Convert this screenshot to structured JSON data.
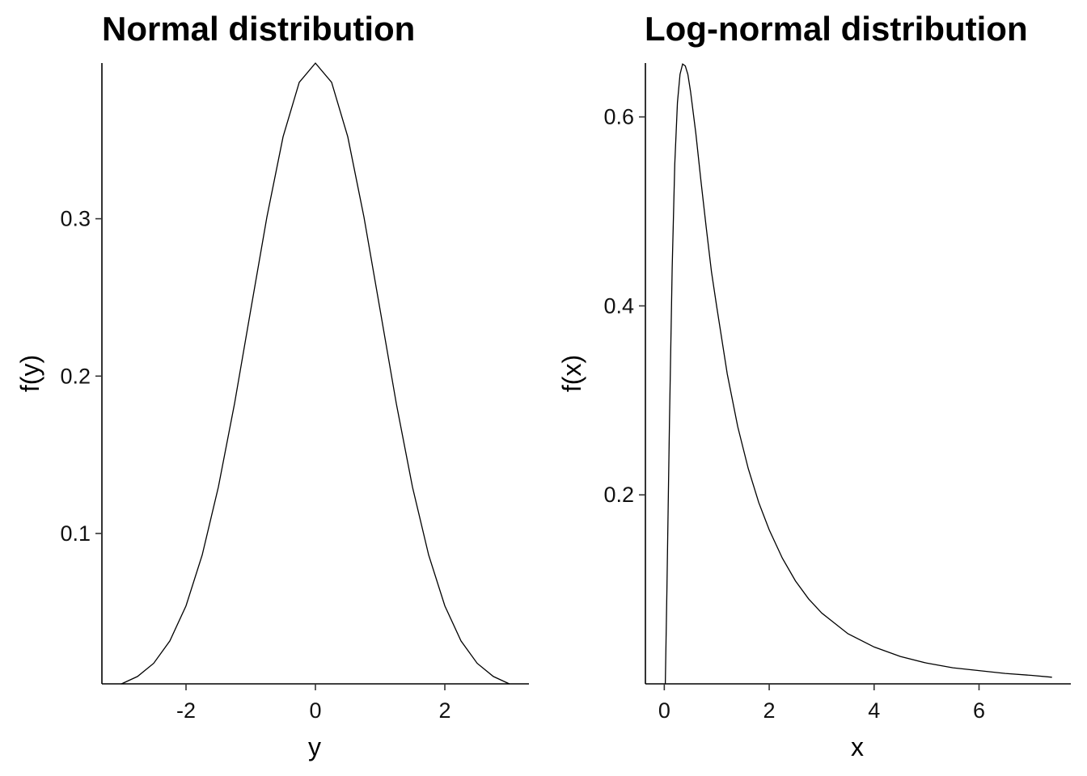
{
  "chart_data": [
    {
      "type": "line",
      "title": "Normal distribution",
      "xlabel": "y",
      "ylabel": "f(y)",
      "xlim": [
        -3.3,
        3.3
      ],
      "ylim": [
        0.00443,
        0.39894
      ],
      "xticks": [
        -2,
        0,
        2
      ],
      "xtick_labels": [
        "-2",
        "0",
        "2"
      ],
      "yticks": [
        0.1,
        0.2,
        0.3
      ],
      "ytick_labels": [
        "0.1",
        "0.2",
        "0.3"
      ],
      "grid": false,
      "series": [
        {
          "x": [
            -3.0,
            -2.75,
            -2.5,
            -2.25,
            -2.0,
            -1.75,
            -1.5,
            -1.25,
            -1.0,
            -0.75,
            -0.5,
            -0.25,
            0.0,
            0.25,
            0.5,
            0.75,
            1.0,
            1.25,
            1.5,
            1.75,
            2.0,
            2.25,
            2.5,
            2.75,
            3.0
          ],
          "y": [
            0.0044,
            0.0091,
            0.0175,
            0.0317,
            0.054,
            0.0863,
            0.1295,
            0.1826,
            0.242,
            0.3011,
            0.3521,
            0.3867,
            0.3989,
            0.3867,
            0.3521,
            0.3011,
            0.242,
            0.1826,
            0.1295,
            0.0863,
            0.054,
            0.0317,
            0.0175,
            0.0091,
            0.0044
          ]
        }
      ]
    },
    {
      "type": "line",
      "title": "Log-normal distribution",
      "xlabel": "x",
      "ylabel": "f(x)",
      "xlim": [
        -0.36,
        7.75
      ],
      "ylim": [
        0.0,
        0.657
      ],
      "xticks": [
        0,
        2,
        4,
        6
      ],
      "xtick_labels": [
        "0",
        "2",
        "4",
        "6"
      ],
      "yticks": [
        0.2,
        0.4,
        0.6
      ],
      "ytick_labels": [
        "0.2",
        "0.4",
        "0.6"
      ],
      "grid": false,
      "series": [
        {
          "x": [
            0.02,
            0.05,
            0.1,
            0.15,
            0.2,
            0.25,
            0.3,
            0.35,
            0.4,
            0.45,
            0.5,
            0.6,
            0.7,
            0.8,
            0.9,
            1.0,
            1.2,
            1.4,
            1.6,
            1.8,
            2.0,
            2.25,
            2.5,
            2.75,
            3.0,
            3.5,
            4.0,
            4.5,
            5.0,
            5.5,
            6.0,
            6.5,
            7.0,
            7.39
          ],
          "y": [
            0.0,
            0.1,
            0.28,
            0.44,
            0.55,
            0.615,
            0.645,
            0.656,
            0.654,
            0.645,
            0.627,
            0.583,
            0.532,
            0.483,
            0.436,
            0.399,
            0.328,
            0.272,
            0.228,
            0.192,
            0.163,
            0.133,
            0.109,
            0.09,
            0.075,
            0.053,
            0.039,
            0.029,
            0.022,
            0.017,
            0.014,
            0.011,
            0.009,
            0.007
          ]
        }
      ]
    }
  ]
}
